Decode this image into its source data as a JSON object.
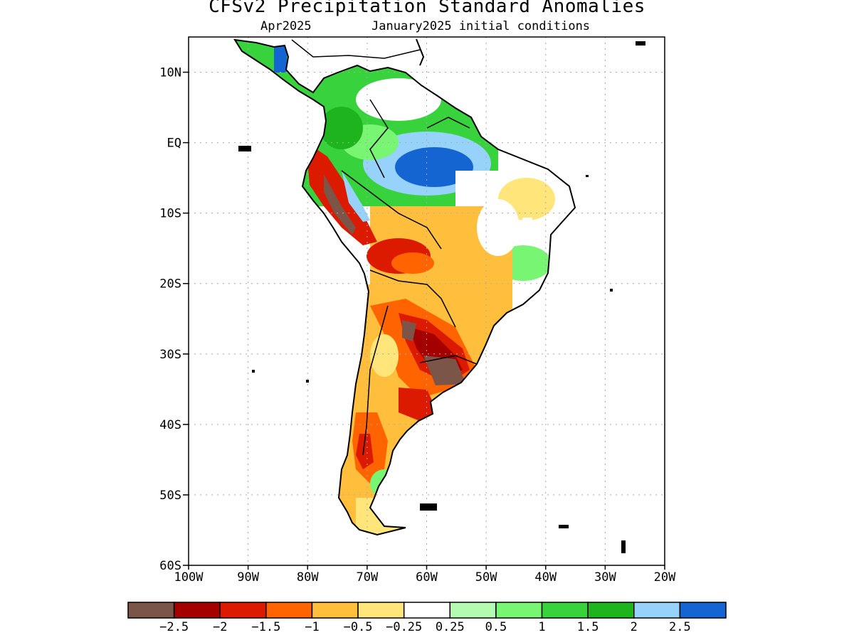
{
  "title": "CFSv2 Precipitation Standard Anomalies",
  "subtitle_left": "Apr2025",
  "subtitle_right": "January2025 initial conditions",
  "map": {
    "lon_range": [
      -100,
      -20
    ],
    "lat_range": [
      -60,
      15
    ],
    "lat_ticks": [
      {
        "value": 10,
        "label": "10N"
      },
      {
        "value": 0,
        "label": "EQ"
      },
      {
        "value": -10,
        "label": "10S"
      },
      {
        "value": -20,
        "label": "20S"
      },
      {
        "value": -30,
        "label": "30S"
      },
      {
        "value": -40,
        "label": "40S"
      },
      {
        "value": -50,
        "label": "50S"
      },
      {
        "value": -60,
        "label": "60S"
      }
    ],
    "lon_ticks": [
      {
        "value": -100,
        "label": "100W"
      },
      {
        "value": -90,
        "label": "90W"
      },
      {
        "value": -80,
        "label": "80W"
      },
      {
        "value": -70,
        "label": "70W"
      },
      {
        "value": -60,
        "label": "60W"
      },
      {
        "value": -50,
        "label": "50W"
      },
      {
        "value": -40,
        "label": "40W"
      },
      {
        "value": -30,
        "label": "30W"
      },
      {
        "value": -20,
        "label": "20W"
      }
    ],
    "grid": "dotted"
  },
  "colorbar": {
    "colors": [
      "#7b5548",
      "#a50000",
      "#dc1a00",
      "#ff6400",
      "#ffbe3c",
      "#ffe57a",
      "#ffffff",
      "#b4fab0",
      "#78f573",
      "#37d23c",
      "#1eb41e",
      "#96d2fa",
      "#1464d2"
    ],
    "labels": [
      "−2.5",
      "−2",
      "−1.5",
      "−1",
      "−0.5",
      "−0.25",
      "0.25",
      "0.5",
      "1",
      "1.5",
      "2",
      "2.5"
    ]
  }
}
